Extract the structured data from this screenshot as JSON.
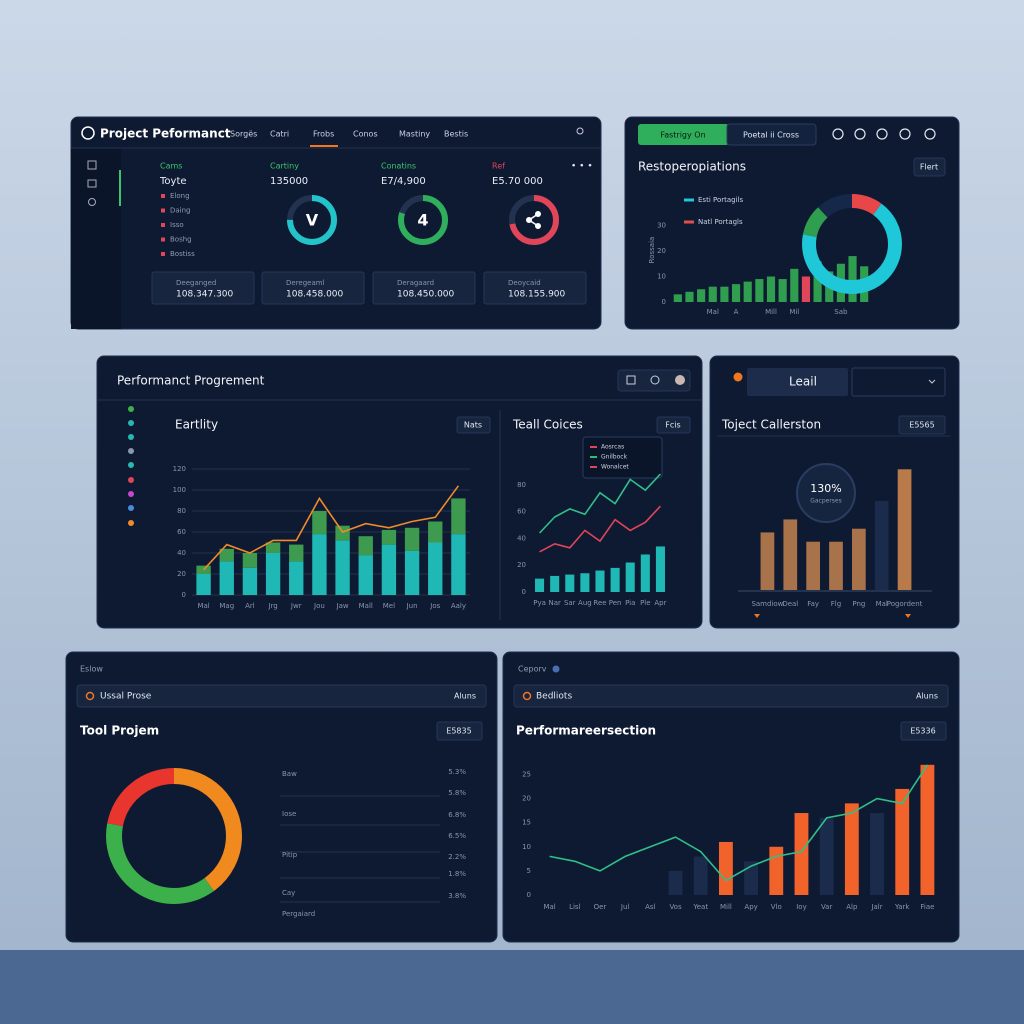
{
  "header": {
    "title": "Project Peformanct",
    "nav": [
      "Sorgës",
      "Catri",
      "Frobs",
      "Conos",
      "Mastiny",
      "Bestis"
    ]
  },
  "summary": {
    "label": "Cams",
    "heading": "Toyte",
    "items": [
      "Elong",
      "Daing",
      "Isso",
      "Boshg",
      "Bostiss"
    ],
    "cards": [
      {
        "label": "Cartiny",
        "value": "135000",
        "center": "V",
        "percent": 75,
        "color": "#22c3c9",
        "label_color": "#3cc46a"
      },
      {
        "label": "Conatins",
        "value": "E7/4,900",
        "center": "4",
        "percent": 80,
        "color": "#2fae5c",
        "label_color": "#3cc46a"
      },
      {
        "label": "Ref",
        "value": "E5.70 000",
        "percent": 72,
        "color": "#e0455a",
        "label_color": "#e0455a"
      }
    ],
    "footers": [
      {
        "label": "Deeganged",
        "value": "108.347.300"
      },
      {
        "label": "Deregeaml",
        "value": "108.458.000"
      },
      {
        "label": "Deragaard",
        "value": "108.450.000"
      },
      {
        "label": "Deoycaid",
        "value": "108.155.900"
      }
    ]
  },
  "resto": {
    "buttons": [
      "Fastrigy On",
      "Poetal ii Cross"
    ],
    "title": "Restoperopiations",
    "button": "Flert",
    "axis_label": "Rossaia",
    "legend": [
      {
        "name": "Esti Portagils",
        "color": "#1ec8d8"
      },
      {
        "name": "Natl Portagls",
        "color": "#e0504a"
      }
    ],
    "chart": {
      "type": "bar",
      "ylim": [
        0,
        40
      ],
      "yticks": [
        0,
        10,
        20,
        30
      ],
      "grid": false,
      "categories": [
        null,
        null,
        null,
        "Mal",
        null,
        "A",
        null,
        null,
        "Mill",
        null,
        "Mil",
        null,
        null,
        null,
        "Sab",
        null,
        null
      ],
      "series": [
        {
          "kind": "bar",
          "values": [
            3,
            4,
            5,
            6,
            6,
            7,
            8,
            9,
            10,
            9,
            13,
            10,
            16,
            12,
            15,
            18,
            14
          ],
          "colors": [
            "#2f9e4f",
            "#2f9e4f",
            "#2f9e4f",
            "#2f9e4f",
            "#2f9e4f",
            "#2f9e4f",
            "#2f9e4f",
            "#2f9e4f",
            "#2f9e4f",
            "#2f9e4f",
            "#2f9e4f",
            "#e0455a",
            "#2f9e4f",
            "#2f9e4f",
            "#2f9e4f",
            "#2f9e4f",
            "#2f9e4f"
          ]
        }
      ]
    },
    "donut": {
      "type": "pie",
      "values": [
        10,
        68,
        10,
        12
      ],
      "colors": [
        "#e8474a",
        "#1ec8d8",
        "#2f9e4f",
        "#15284a"
      ]
    }
  },
  "progress": {
    "title": "Performanct Progrement",
    "left": {
      "title": "Eartlity",
      "badge": "Nats",
      "chart": {
        "type": "bar",
        "ylim": [
          0,
          140
        ],
        "yticks": [
          0,
          20,
          40,
          60,
          80,
          100,
          120
        ],
        "grid": true,
        "categories": [
          "Mal",
          "Mag",
          "Arl",
          "Jrg",
          "Jwr",
          "Jou",
          "Jaw",
          "Mall",
          "Mel",
          "Jun",
          "Jos",
          "Aaly"
        ],
        "series": [
          {
            "kind": "bar",
            "color": "#1fb8b4",
            "values": [
              20,
              32,
              26,
              40,
              32,
              58,
              52,
              38,
              48,
              42,
              50,
              58
            ]
          },
          {
            "kind": "bar",
            "stack": true,
            "color": "#3d9a4e",
            "values": [
              8,
              12,
              14,
              10,
              16,
              22,
              14,
              18,
              14,
              22,
              20,
              34
            ]
          },
          {
            "kind": "line",
            "color": "#f08a2a",
            "values": [
              24,
              48,
              40,
              52,
              52,
              92,
              60,
              68,
              64,
              70,
              74,
              104
            ]
          }
        ]
      }
    },
    "right": {
      "title": "Teall Coices",
      "badge": "Fcis",
      "legend": [
        {
          "name": "Aosrcas",
          "color": "#e0455a"
        },
        {
          "name": "Gnilbock",
          "color": "#2fbf6a"
        },
        {
          "name": "Wonalcet",
          "color": "#e0455a"
        }
      ],
      "chart": {
        "type": "bar",
        "ylim": [
          0,
          100
        ],
        "yticks": [
          0,
          20,
          40,
          60,
          80
        ],
        "grid": false,
        "categories": [
          "Pya",
          "Nar",
          "Sar",
          "Aug",
          "Ree",
          "Pen",
          "Pia",
          "Ple",
          "Apr"
        ],
        "series": [
          {
            "kind": "bar",
            "color": "#1fb8b4",
            "values": [
              10,
              12,
              13,
              14,
              16,
              18,
              22,
              28,
              34
            ]
          },
          {
            "kind": "line",
            "color": "#e0455a",
            "values": [
              30,
              36,
              33,
              46,
              38,
              54,
              46,
              52,
              64
            ]
          },
          {
            "kind": "line",
            "color": "#2fbf8a",
            "values": [
              44,
              56,
              62,
              58,
              74,
              66,
              84,
              76,
              88
            ]
          }
        ]
      }
    }
  },
  "collect": {
    "dropdown": "Leail",
    "title": "Toject Callerston",
    "badge": "E5565",
    "circle_value": "130%",
    "circle_label": "Gacperses",
    "chart": {
      "type": "bar",
      "ylim": [
        0,
        140
      ],
      "yticks": [],
      "grid": false,
      "categories": [
        "Samdiow",
        "Deal",
        "Fay",
        "Flg",
        "Png",
        "Mal",
        "Pogordent"
      ],
      "series": [
        {
          "kind": "bar",
          "values": [
            62,
            76,
            52,
            52,
            66,
            96,
            130
          ],
          "colors": [
            "#a8734a",
            "#a8734a",
            "#a8734a",
            "#a8734a",
            "#a8734a",
            "#1a2b4c",
            "#b77a48"
          ]
        }
      ]
    }
  },
  "tool": {
    "label": "Eslow",
    "dropdown": "Ussal Prose",
    "dropdown_right": "Aluns",
    "title": "Tool Projem",
    "badge": "E5835",
    "donut": {
      "type": "pie",
      "values": [
        40,
        38,
        22
      ],
      "colors": [
        "#f08a1f",
        "#3cb04a",
        "#e8352e"
      ]
    },
    "row_labels": [
      "Baw",
      "Iose",
      "Pitip",
      "Cay"
    ],
    "row_values": [
      "5.3%",
      "5.8%",
      "6.8%",
      "6.5%",
      "2.2%",
      "1.8%",
      "3.8%"
    ],
    "footer": "Pergaiard"
  },
  "perf": {
    "label": "Ceporv",
    "dropdown": "Bedliots",
    "dropdown_right": "Aluns",
    "title": "Performareersection",
    "badge": "E5336",
    "chart": {
      "type": "bar",
      "ylim": [
        0,
        28
      ],
      "yticks": [
        0,
        5,
        10,
        15,
        20,
        25
      ],
      "grid": false,
      "categories": [
        "Mal",
        "Lisl",
        "Oer",
        "Jul",
        "Asl",
        "Vos",
        "Yeat",
        "Mill",
        "Apy",
        "Vlo",
        "Ioy",
        "Var",
        "Alp",
        "Jalr",
        "Yark",
        "Fiae"
      ],
      "series": [
        {
          "kind": "bar",
          "color": "#1a2b4c",
          "values": [
            null,
            null,
            null,
            null,
            null,
            5,
            8,
            null,
            7,
            null,
            null,
            16,
            null,
            17,
            null,
            null
          ]
        },
        {
          "kind": "bar",
          "color": "#f2622b",
          "values": [
            null,
            null,
            null,
            null,
            null,
            null,
            null,
            11,
            null,
            10,
            17,
            null,
            19,
            null,
            22,
            27
          ]
        },
        {
          "kind": "line",
          "color": "#2fbf8a",
          "values": [
            8,
            7,
            5,
            8,
            10,
            12,
            9,
            3,
            6,
            8,
            9,
            16,
            17,
            20,
            19,
            27
          ]
        }
      ]
    }
  }
}
